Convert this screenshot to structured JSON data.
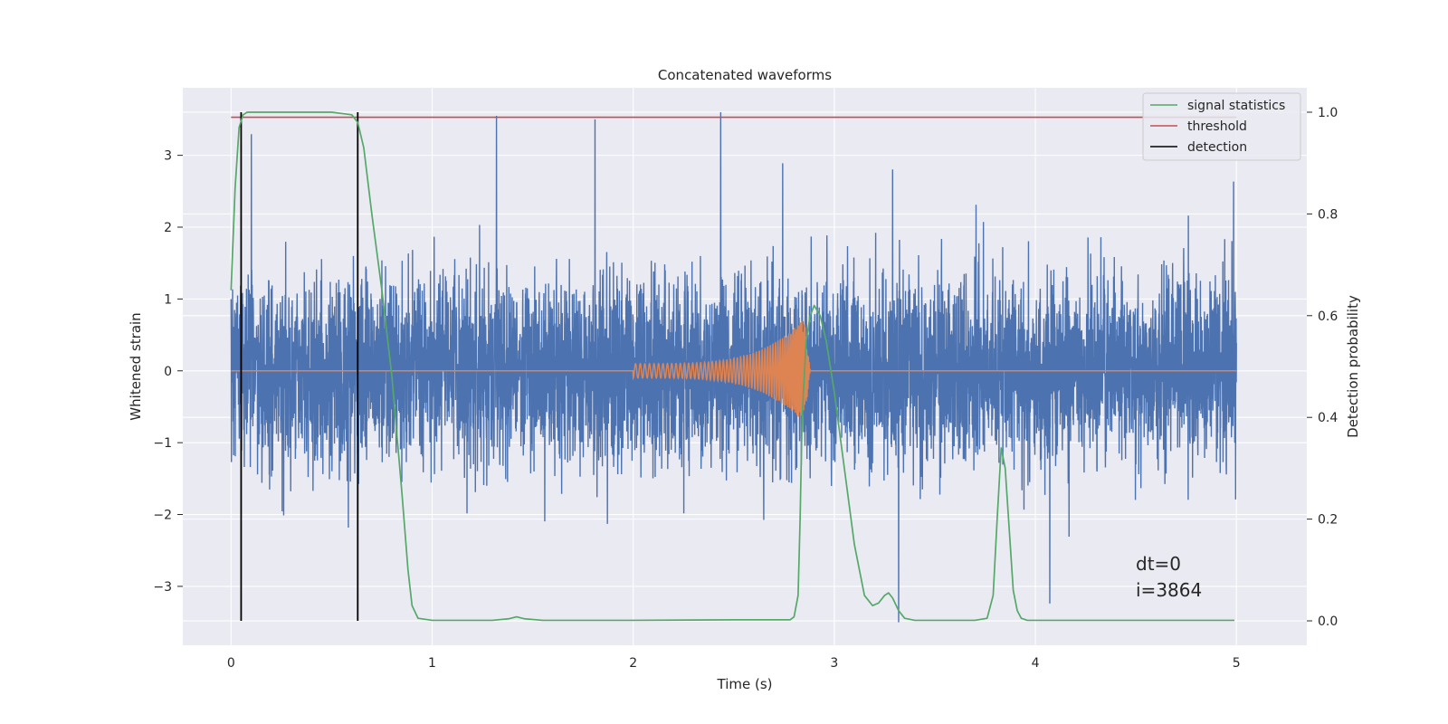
{
  "chart_data": {
    "type": "line",
    "title": "Concatenated waveforms",
    "xlabel": "Time (s)",
    "ylabel_left": "Whitened strain",
    "ylabel_right": "Detection probability",
    "xlim": [
      -0.24,
      5.35
    ],
    "ylim_left": [
      -3.82,
      3.94
    ],
    "ylim_right": [
      -0.048,
      1.048
    ],
    "x_ticks": [
      0,
      1,
      2,
      3,
      4,
      5
    ],
    "y_ticks_left": [
      -3,
      -2,
      -1,
      0,
      1,
      2,
      3
    ],
    "y_ticks_right": [
      0.0,
      0.2,
      0.4,
      0.6,
      0.8,
      1.0
    ],
    "grid": true,
    "legend_location": "top-right",
    "legend": [
      {
        "name": "signal statistics",
        "color": "#55a868"
      },
      {
        "name": "threshold",
        "color": "#c44e52"
      },
      {
        "name": "detection",
        "color": "#000000"
      }
    ],
    "annotations": [
      "dt=0",
      "i=3864"
    ],
    "series": [
      {
        "role": "whitened strain noise",
        "axis": "left",
        "color": "#4c72b0",
        "x_range": [
          0,
          5
        ],
        "envelope": [
          -3.5,
          3.6
        ],
        "notable_peaks": [
          {
            "x": 1.32,
            "y": 3.55
          },
          {
            "x": 1.81,
            "y": 3.5
          },
          {
            "x": 3.32,
            "y": -3.5
          }
        ]
      },
      {
        "role": "injected waveform",
        "axis": "left",
        "color": "#dd8452",
        "start": 2.0,
        "merger": 2.85,
        "amp_start": 0.1,
        "amp_peak": 0.73
      },
      {
        "name": "signal statistics",
        "axis": "right",
        "color": "#55a868",
        "x": [
          0.0,
          0.02,
          0.04,
          0.06,
          0.08,
          0.12,
          0.2,
          0.5,
          0.6,
          0.63,
          0.66,
          0.7,
          0.75,
          0.8,
          0.85,
          0.88,
          0.9,
          0.93,
          1.0,
          1.3,
          1.38,
          1.42,
          1.46,
          1.55,
          2.0,
          2.5,
          2.78,
          2.8,
          2.82,
          2.83,
          2.84,
          2.86,
          2.88,
          2.9,
          2.93,
          2.96,
          3.0,
          3.05,
          3.1,
          3.15,
          3.19,
          3.22,
          3.25,
          3.27,
          3.29,
          3.32,
          3.35,
          3.4,
          3.5,
          3.7,
          3.76,
          3.79,
          3.81,
          3.83,
          3.85,
          3.87,
          3.89,
          3.91,
          3.93,
          3.96,
          4.0,
          4.5,
          4.99
        ],
        "y": [
          0.65,
          0.85,
          0.97,
          0.995,
          1.0,
          1.0,
          1.0,
          1.0,
          0.995,
          0.98,
          0.93,
          0.8,
          0.65,
          0.48,
          0.25,
          0.1,
          0.03,
          0.005,
          0.001,
          0.001,
          0.004,
          0.008,
          0.004,
          0.001,
          0.001,
          0.002,
          0.002,
          0.008,
          0.05,
          0.2,
          0.4,
          0.55,
          0.6,
          0.62,
          0.6,
          0.55,
          0.45,
          0.3,
          0.15,
          0.05,
          0.03,
          0.035,
          0.05,
          0.055,
          0.045,
          0.02,
          0.005,
          0.001,
          0.001,
          0.001,
          0.005,
          0.05,
          0.2,
          0.34,
          0.3,
          0.18,
          0.06,
          0.02,
          0.005,
          0.001,
          0.001,
          0.001,
          0.001
        ]
      },
      {
        "name": "threshold",
        "axis": "right",
        "color": "#c44e52",
        "x": [
          0,
          5
        ],
        "y": [
          0.99,
          0.99
        ]
      },
      {
        "name": "detection",
        "axis": "right",
        "color": "#000000",
        "x": [
          0.05,
          0.63
        ],
        "y_span": [
          0,
          1
        ]
      }
    ]
  }
}
